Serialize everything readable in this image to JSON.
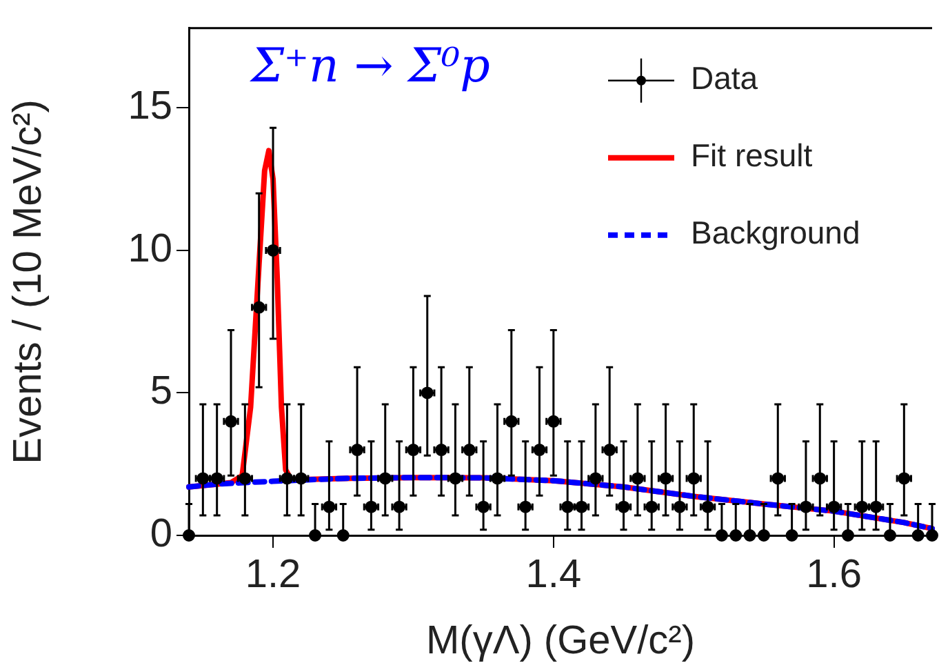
{
  "chart_data": {
    "type": "scatter",
    "xlabel": "M(γΛ) (GeV/c²)",
    "ylabel": "Events / (10 MeV/c²)",
    "xlim": [
      1.14,
      1.67
    ],
    "ylim": [
      0,
      17.8
    ],
    "xticks": [
      1.2,
      1.4,
      1.6
    ],
    "yticks": [
      0,
      5,
      10,
      15
    ],
    "legend": "top right",
    "annotations": [
      "Σ⁺n → Σ⁰p"
    ],
    "series": [
      {
        "name": "Data",
        "color": "#000000",
        "marker": "circle",
        "x": [
          1.14,
          1.15,
          1.16,
          1.17,
          1.18,
          1.19,
          1.2,
          1.21,
          1.22,
          1.23,
          1.24,
          1.25,
          1.26,
          1.27,
          1.28,
          1.29,
          1.3,
          1.31,
          1.32,
          1.33,
          1.34,
          1.35,
          1.36,
          1.37,
          1.38,
          1.39,
          1.4,
          1.41,
          1.42,
          1.43,
          1.44,
          1.45,
          1.46,
          1.47,
          1.48,
          1.49,
          1.5,
          1.51,
          1.52,
          1.53,
          1.54,
          1.55,
          1.56,
          1.57,
          1.58,
          1.59,
          1.6,
          1.61,
          1.62,
          1.63,
          1.64,
          1.65,
          1.66,
          1.67
        ],
        "values": [
          0,
          2,
          2,
          4,
          2,
          8,
          10,
          2,
          2,
          0,
          1,
          0,
          3,
          1,
          2,
          1,
          3,
          5,
          3,
          2,
          3,
          1,
          2,
          4,
          1,
          3,
          4,
          1,
          1,
          2,
          3,
          1,
          2,
          1,
          2,
          1,
          2,
          1,
          0,
          0,
          0,
          0,
          2,
          0,
          1,
          2,
          1,
          0,
          1,
          1,
          0,
          2,
          0,
          0
        ],
        "errors": [
          [
            0,
            1.1
          ],
          [
            0.7,
            4.6
          ],
          [
            0.7,
            4.6
          ],
          [
            2.1,
            7.2
          ],
          [
            0.7,
            4.6
          ],
          [
            5.2,
            12
          ],
          [
            6.9,
            14.3
          ],
          [
            0.7,
            4.6
          ],
          [
            0.7,
            4.6
          ],
          [
            0,
            1.1
          ],
          [
            0.2,
            3.3
          ],
          [
            0,
            1.1
          ],
          [
            1.4,
            5.9
          ],
          [
            0.2,
            3.3
          ],
          [
            0.7,
            4.6
          ],
          [
            0.2,
            3.3
          ],
          [
            1.4,
            5.9
          ],
          [
            2.8,
            8.4
          ],
          [
            1.4,
            5.9
          ],
          [
            0.7,
            4.6
          ],
          [
            1.4,
            5.9
          ],
          [
            0.2,
            3.3
          ],
          [
            0.7,
            4.6
          ],
          [
            2.1,
            7.2
          ],
          [
            0.2,
            3.3
          ],
          [
            1.4,
            5.9
          ],
          [
            2.1,
            7.2
          ],
          [
            0.2,
            3.3
          ],
          [
            0.2,
            3.3
          ],
          [
            0.7,
            4.6
          ],
          [
            1.4,
            5.9
          ],
          [
            0.2,
            3.3
          ],
          [
            0.7,
            4.6
          ],
          [
            0.2,
            3.3
          ],
          [
            0.7,
            4.6
          ],
          [
            0.2,
            3.3
          ],
          [
            0.7,
            4.6
          ],
          [
            0.2,
            3.3
          ],
          [
            0,
            1.1
          ],
          [
            0,
            1.1
          ],
          [
            0,
            1.1
          ],
          [
            0,
            1.1
          ],
          [
            0.7,
            4.6
          ],
          [
            0,
            1.1
          ],
          [
            0.2,
            3.3
          ],
          [
            0.7,
            4.6
          ],
          [
            0.2,
            3.3
          ],
          [
            0,
            1.1
          ],
          [
            0.2,
            3.3
          ],
          [
            0.2,
            3.3
          ],
          [
            0,
            1.1
          ],
          [
            0.7,
            4.6
          ],
          [
            0,
            1.1
          ],
          [
            0,
            1.1
          ]
        ],
        "xerrors": [
          null,
          0.005,
          0.005,
          0.005,
          0.005,
          0.005,
          0.005,
          0.005,
          0.005,
          null,
          0.005,
          null,
          0.005,
          0.005,
          0.005,
          0.005,
          0.005,
          0.005,
          0.005,
          0.005,
          0.005,
          0.005,
          0.005,
          0.005,
          0.005,
          0.005,
          0.005,
          0.005,
          0.005,
          0.005,
          0.005,
          0.005,
          0.005,
          0.005,
          0.005,
          0.005,
          0.005,
          0.005,
          null,
          null,
          null,
          null,
          0.005,
          null,
          0.005,
          0.005,
          0.005,
          null,
          0.005,
          0.005,
          null,
          0.005,
          null,
          null
        ]
      },
      {
        "name": "Fit result",
        "type": "line",
        "color": "#ff0000",
        "line_style": "solid",
        "x": [
          1.14,
          1.16,
          1.17,
          1.178,
          1.184,
          1.19,
          1.194,
          1.197,
          1.2,
          1.203,
          1.206,
          1.209,
          1.213,
          1.25,
          1.3,
          1.35,
          1.4,
          1.45,
          1.5,
          1.55,
          1.6,
          1.65,
          1.67
        ],
        "values": [
          1.7,
          1.8,
          1.85,
          2.1,
          4.5,
          9.5,
          12.8,
          13.5,
          12.5,
          9,
          4.5,
          2.3,
          1.95,
          2,
          2.03,
          2.02,
          1.92,
          1.7,
          1.37,
          1.1,
          0.85,
          0.45,
          0.24
        ]
      },
      {
        "name": "Background",
        "type": "line",
        "color": "#0000ff",
        "line_style": "dashed",
        "x": [
          1.14,
          1.16,
          1.18,
          1.2,
          1.25,
          1.3,
          1.35,
          1.4,
          1.45,
          1.5,
          1.55,
          1.6,
          1.65,
          1.67
        ],
        "values": [
          1.7,
          1.8,
          1.85,
          1.9,
          2,
          2.03,
          2.02,
          1.92,
          1.7,
          1.37,
          1.1,
          0.85,
          0.45,
          0.24
        ]
      }
    ]
  }
}
